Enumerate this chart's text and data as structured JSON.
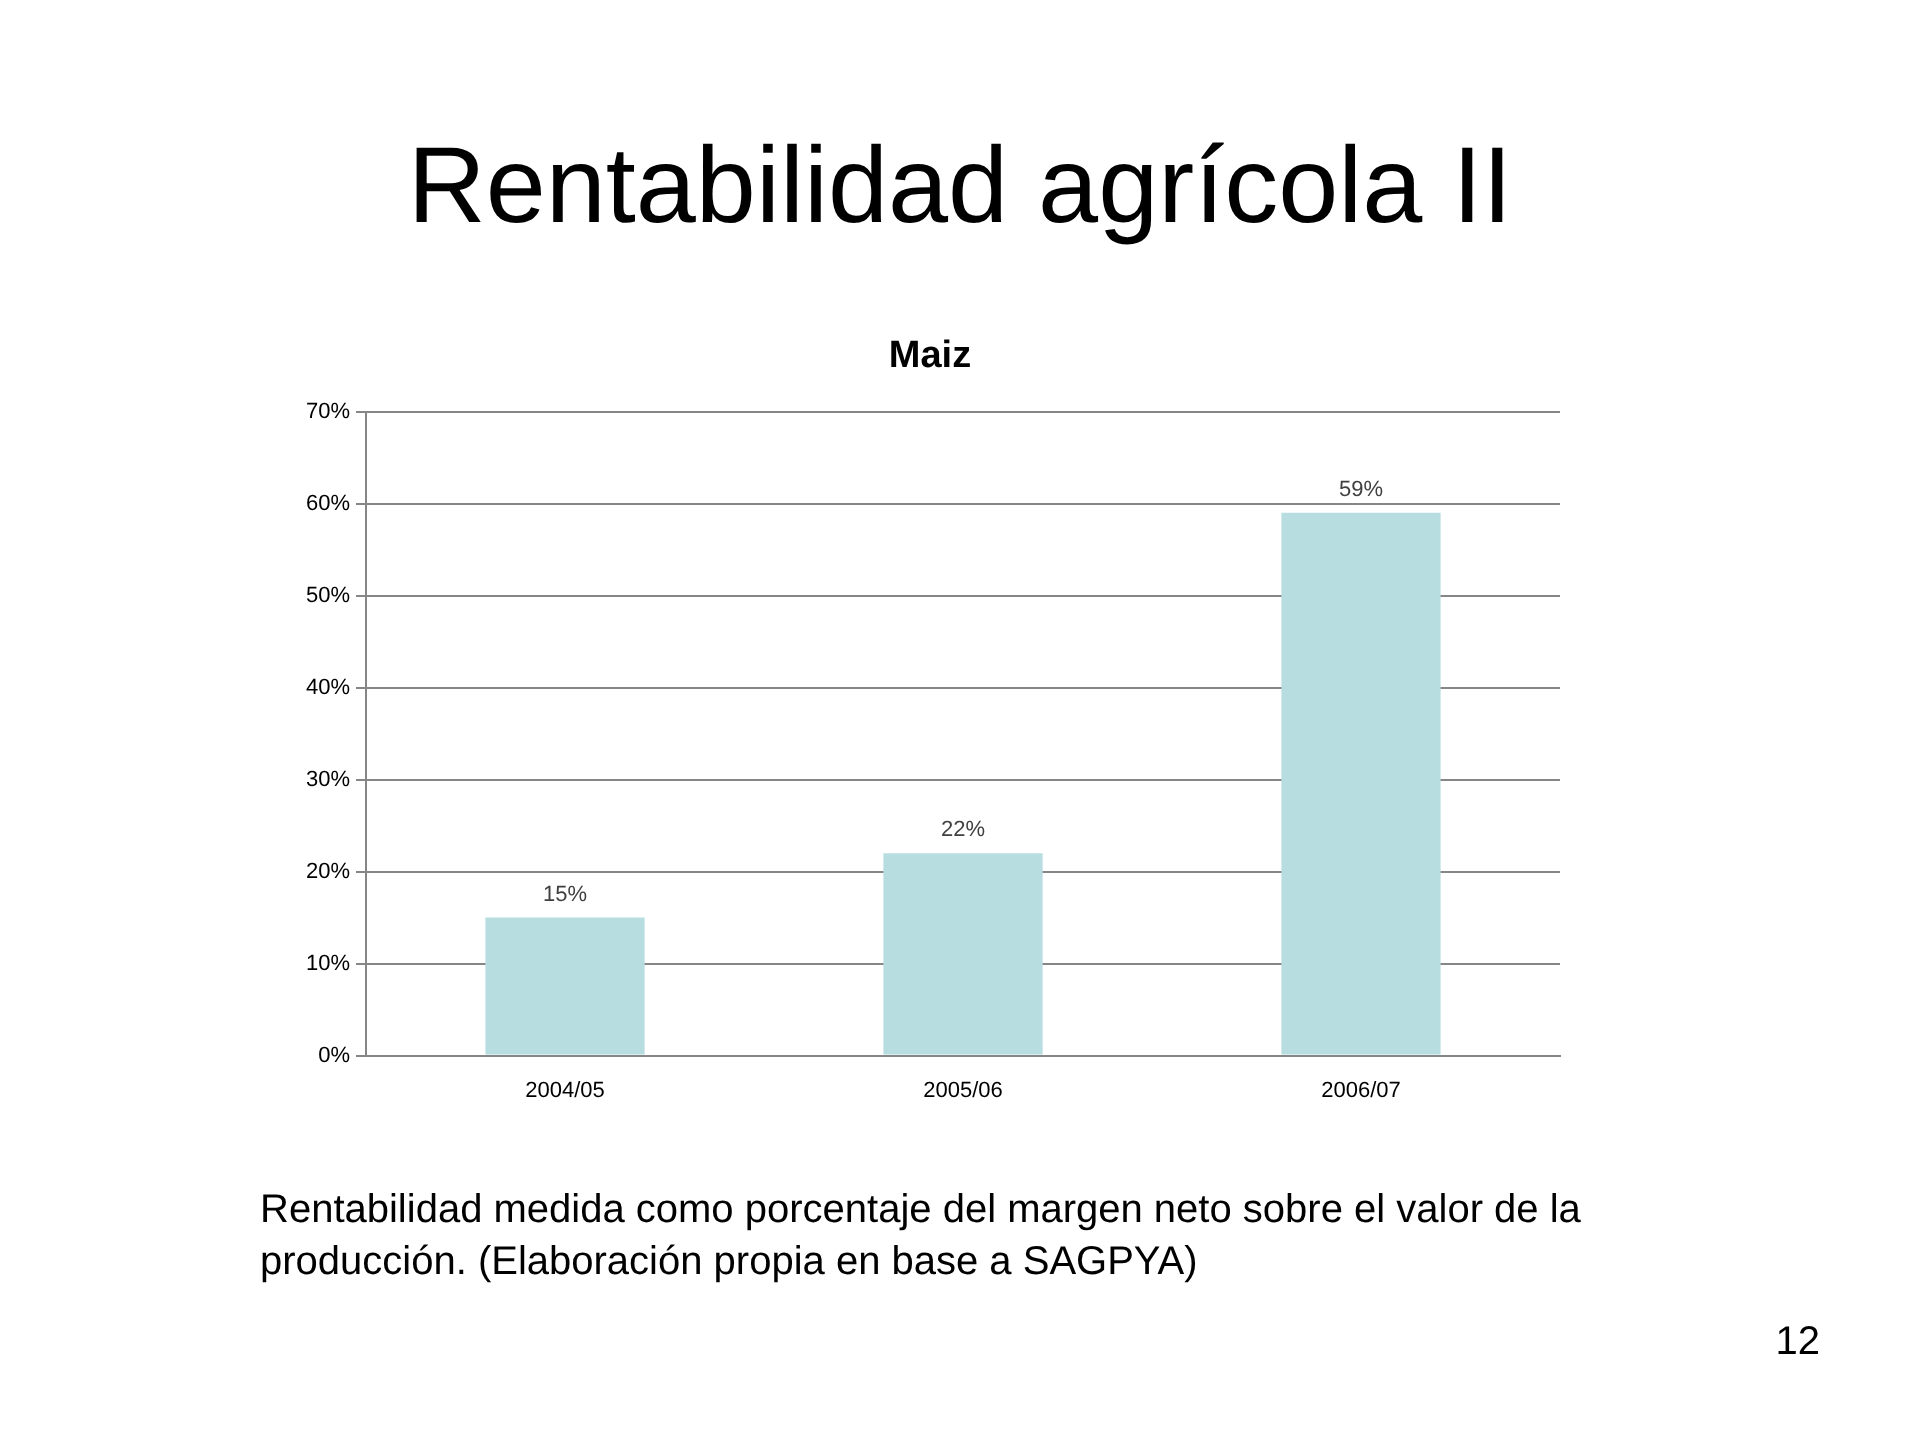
{
  "chart_data": {
    "type": "bar",
    "title": "Rentabilidad agrícola II",
    "subtitle": "Maiz",
    "categories": [
      "2004/05",
      "2005/06",
      "2006/07"
    ],
    "values": [
      15,
      22,
      59
    ],
    "value_labels": [
      "15%",
      "22%",
      "59%"
    ],
    "color": "#b7dde1",
    "ylim": [
      0,
      70
    ],
    "yticks": [
      {
        "value": 0,
        "label": "0%"
      },
      {
        "value": 10,
        "label": "10%"
      },
      {
        "value": 20,
        "label": "20%"
      },
      {
        "value": 30,
        "label": "30%"
      },
      {
        "value": 40,
        "label": "40%"
      },
      {
        "value": 50,
        "label": "50%"
      },
      {
        "value": 60,
        "label": "60%"
      },
      {
        "value": 70,
        "label": "70%"
      }
    ],
    "grid": "y",
    "legend": false,
    "annotations": [
      "Rentabilidad medida como porcentaje del margen neto sobre el valor de la producción. (Elaboración propia en base a SAGPYA)",
      "12"
    ]
  }
}
